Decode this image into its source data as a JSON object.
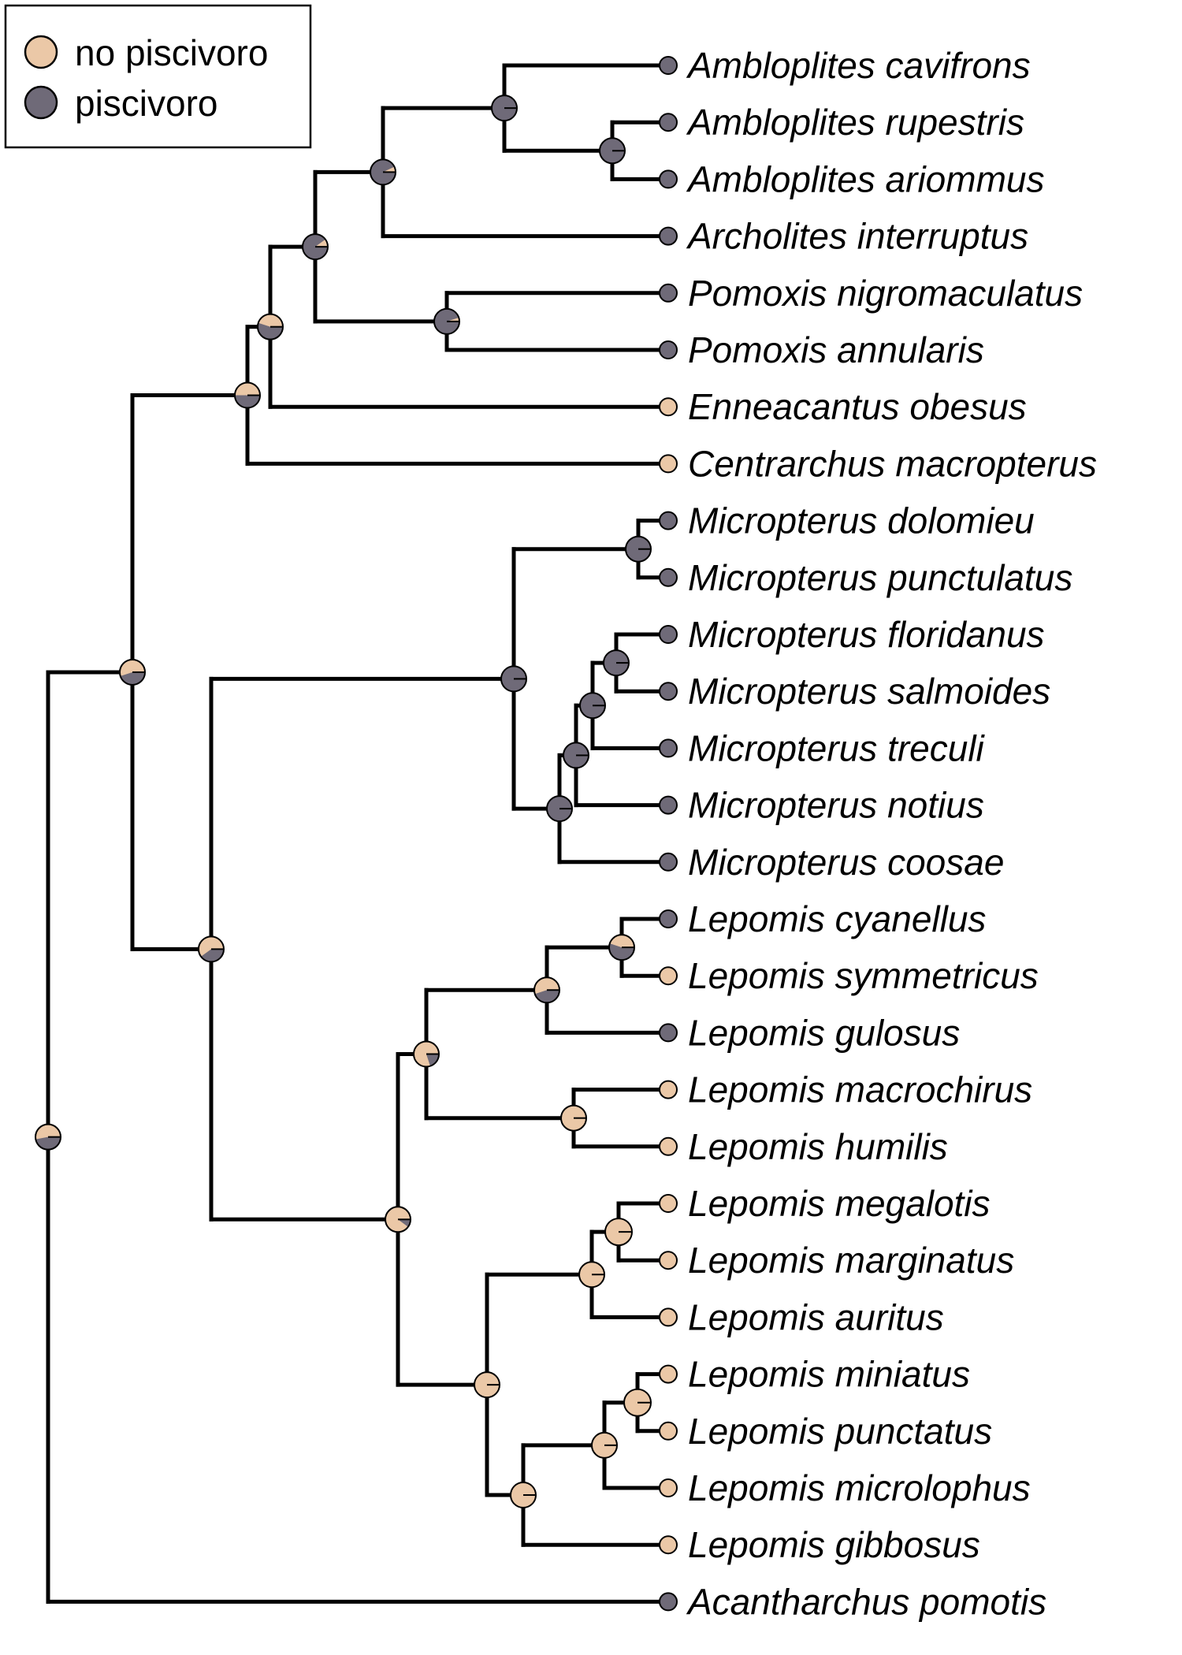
{
  "legend": {
    "items": [
      {
        "label": "no piscivoro",
        "color": "#EBC8A7"
      },
      {
        "label": "piscivoro",
        "color": "#6F6A78"
      }
    ]
  },
  "colors": {
    "non_piscivore": "#EBC8A7",
    "piscivore": "#6F6A78",
    "branch": "#000000"
  },
  "tree": {
    "tips": [
      {
        "name": "Ambloplites cavifrons",
        "state": "piscivoro"
      },
      {
        "name": "Ambloplites rupestris",
        "state": "piscivoro"
      },
      {
        "name": "Ambloplites ariommus",
        "state": "piscivoro"
      },
      {
        "name": "Archolites interruptus",
        "state": "piscivoro"
      },
      {
        "name": "Pomoxis nigromaculatus",
        "state": "piscivoro"
      },
      {
        "name": "Pomoxis annularis",
        "state": "piscivoro"
      },
      {
        "name": "Enneacantus obesus",
        "state": "no piscivoro"
      },
      {
        "name": "Centrarchus macropterus",
        "state": "no piscivoro"
      },
      {
        "name": "Micropterus dolomieu",
        "state": "piscivoro"
      },
      {
        "name": "Micropterus punctulatus",
        "state": "piscivoro"
      },
      {
        "name": "Micropterus floridanus",
        "state": "piscivoro"
      },
      {
        "name": "Micropterus salmoides",
        "state": "piscivoro"
      },
      {
        "name": "Micropterus treculi",
        "state": "piscivoro"
      },
      {
        "name": "Micropterus notius",
        "state": "piscivoro"
      },
      {
        "name": "Micropterus coosae",
        "state": "piscivoro"
      },
      {
        "name": "Lepomis cyanellus",
        "state": "piscivoro"
      },
      {
        "name": "Lepomis symmetricus",
        "state": "no piscivoro"
      },
      {
        "name": "Lepomis gulosus",
        "state": "piscivoro"
      },
      {
        "name": "Lepomis macrochirus",
        "state": "no piscivoro"
      },
      {
        "name": "Lepomis humilis",
        "state": "no piscivoro"
      },
      {
        "name": "Lepomis megalotis",
        "state": "no piscivoro"
      },
      {
        "name": "Lepomis marginatus",
        "state": "no piscivoro"
      },
      {
        "name": "Lepomis auritus",
        "state": "no piscivoro"
      },
      {
        "name": "Lepomis miniatus",
        "state": "no piscivoro"
      },
      {
        "name": "Lepomis punctatus",
        "state": "no piscivoro"
      },
      {
        "name": "Lepomis microlophus",
        "state": "no piscivoro"
      },
      {
        "name": "Lepomis gibbosus",
        "state": "no piscivoro"
      },
      {
        "name": "Acantharchus pomotis",
        "state": "piscivoro"
      }
    ],
    "nodes": [
      {
        "id": "amb_rup_ari",
        "children": [
          "Ambloplites rupestris",
          "Ambloplites ariommus"
        ],
        "p_piscivore": 1.0
      },
      {
        "id": "amb",
        "children": [
          "Ambloplites cavifrons",
          "amb_rup_ari"
        ],
        "p_piscivore": 1.0
      },
      {
        "id": "amb_arch",
        "children": [
          "amb",
          "Archolites interruptus"
        ],
        "p_piscivore": 0.93
      },
      {
        "id": "pom",
        "children": [
          "Pomoxis nigromaculatus",
          "Pomoxis annularis"
        ],
        "p_piscivore": 0.95
      },
      {
        "id": "amb_pom",
        "children": [
          "amb_arch",
          "pom"
        ],
        "p_piscivore": 0.9
      },
      {
        "id": "plus_enn",
        "children": [
          "amb_pom",
          "Enneacantus obesus"
        ],
        "p_piscivore": 0.55
      },
      {
        "id": "plus_cen",
        "children": [
          "plus_enn",
          "Centrarchus macropterus"
        ],
        "p_piscivore": 0.5
      },
      {
        "id": "mic_dol_pun",
        "children": [
          "Micropterus dolomieu",
          "Micropterus punctulatus"
        ],
        "p_piscivore": 1.0
      },
      {
        "id": "mic_flo_sal",
        "children": [
          "Micropterus floridanus",
          "Micropterus salmoides"
        ],
        "p_piscivore": 1.0
      },
      {
        "id": "mic_tre",
        "children": [
          "mic_flo_sal",
          "Micropterus treculi"
        ],
        "p_piscivore": 1.0
      },
      {
        "id": "mic_not",
        "children": [
          "mic_tre",
          "Micropterus notius"
        ],
        "p_piscivore": 1.0
      },
      {
        "id": "mic_coo",
        "children": [
          "mic_not",
          "Micropterus coosae"
        ],
        "p_piscivore": 1.0
      },
      {
        "id": "mic",
        "children": [
          "mic_dol_pun",
          "mic_coo"
        ],
        "p_piscivore": 1.0
      },
      {
        "id": "lep_cya_sym",
        "children": [
          "Lepomis cyanellus",
          "Lepomis symmetricus"
        ],
        "p_piscivore": 0.55
      },
      {
        "id": "lep_gul",
        "children": [
          "lep_cya_sym",
          "Lepomis gulosus"
        ],
        "p_piscivore": 0.45
      },
      {
        "id": "lep_mac_hum",
        "children": [
          "Lepomis macrochirus",
          "Lepomis humilis"
        ],
        "p_piscivore": 0.0
      },
      {
        "id": "lep_a",
        "children": [
          "lep_gul",
          "lep_mac_hum"
        ],
        "p_piscivore": 0.2
      },
      {
        "id": "lep_meg_mar",
        "children": [
          "Lepomis megalotis",
          "Lepomis marginatus"
        ],
        "p_piscivore": 0.0
      },
      {
        "id": "lep_aur",
        "children": [
          "lep_meg_mar",
          "Lepomis auritus"
        ],
        "p_piscivore": 0.0
      },
      {
        "id": "lep_min_pun",
        "children": [
          "Lepomis miniatus",
          "Lepomis punctatus"
        ],
        "p_piscivore": 0.0
      },
      {
        "id": "lep_mic",
        "children": [
          "lep_min_pun",
          "Lepomis microlophus"
        ],
        "p_piscivore": 0.0
      },
      {
        "id": "lep_gib",
        "children": [
          "lep_mic",
          "Lepomis gibbosus"
        ],
        "p_piscivore": 0.0
      },
      {
        "id": "lep_b",
        "children": [
          "lep_aur",
          "lep_gib"
        ],
        "p_piscivore": 0.0
      },
      {
        "id": "lep",
        "children": [
          "lep_a",
          "lep_b"
        ],
        "p_piscivore": 0.1
      },
      {
        "id": "mic_lep",
        "children": [
          "mic",
          "lep"
        ],
        "p_piscivore": 0.4
      },
      {
        "id": "ingroup",
        "children": [
          "plus_cen",
          "mic_lep"
        ],
        "p_piscivore": 0.45
      },
      {
        "id": "root",
        "children": [
          "ingroup",
          "Acantharchus pomotis"
        ],
        "p_piscivore": 0.47
      }
    ]
  }
}
